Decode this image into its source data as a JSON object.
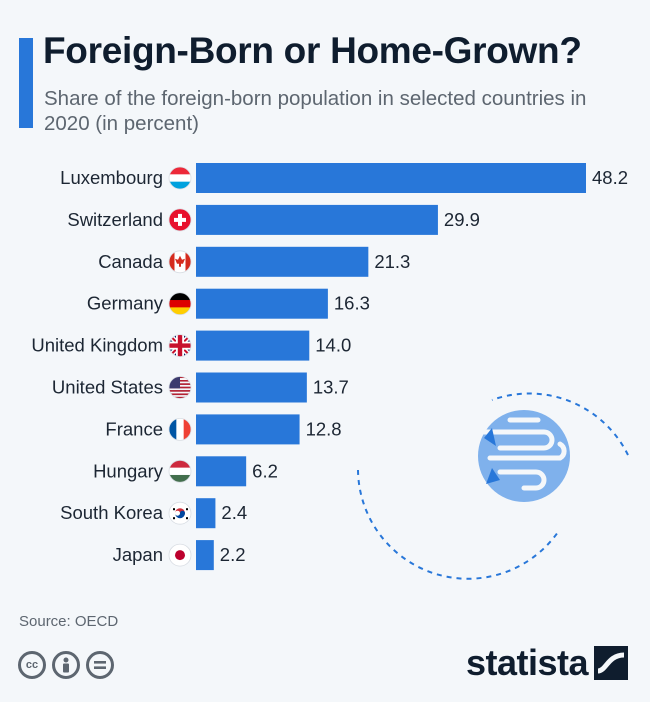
{
  "header": {
    "title": "Foreign-Born or Home-Grown?",
    "subtitle": "Share of the foreign-born population in selected countries in 2020 (in percent)"
  },
  "chart_data": {
    "type": "bar",
    "orientation": "horizontal",
    "title": "Foreign-Born or Home-Grown?",
    "subtitle": "Share of the foreign-born population in selected countries in 2020 (in percent)",
    "categories": [
      "Luxembourg",
      "Switzerland",
      "Canada",
      "Germany",
      "United Kingdom",
      "United States",
      "France",
      "Hungary",
      "South Korea",
      "Japan"
    ],
    "values": [
      48.2,
      29.9,
      21.3,
      16.3,
      14.0,
      13.7,
      12.8,
      6.2,
      2.4,
      2.2
    ],
    "value_labels": [
      "48.2",
      "29.9",
      "21.3",
      "16.3",
      "14.0",
      "13.7",
      "12.8",
      "6.2",
      "2.4",
      "2.2"
    ],
    "flags": [
      "luxembourg-flag-icon",
      "switzerland-flag-icon",
      "canada-flag-icon",
      "germany-flag-icon",
      "united-kingdom-flag-icon",
      "united-states-flag-icon",
      "france-flag-icon",
      "hungary-flag-icon",
      "south-korea-flag-icon",
      "japan-flag-icon"
    ],
    "xlabel": "",
    "ylabel": "",
    "xlim": [
      0,
      48.2
    ],
    "bar_color": "#2877d9",
    "grid": false
  },
  "footer": {
    "source": "Source: OECD",
    "brand": "statista",
    "license_icons": [
      "cc-icon",
      "by-icon",
      "nd-icon"
    ]
  },
  "colors": {
    "accent": "#2877d9",
    "background": "#f4f7fa",
    "title": "#0f1d2e",
    "muted": "#5d6670"
  }
}
